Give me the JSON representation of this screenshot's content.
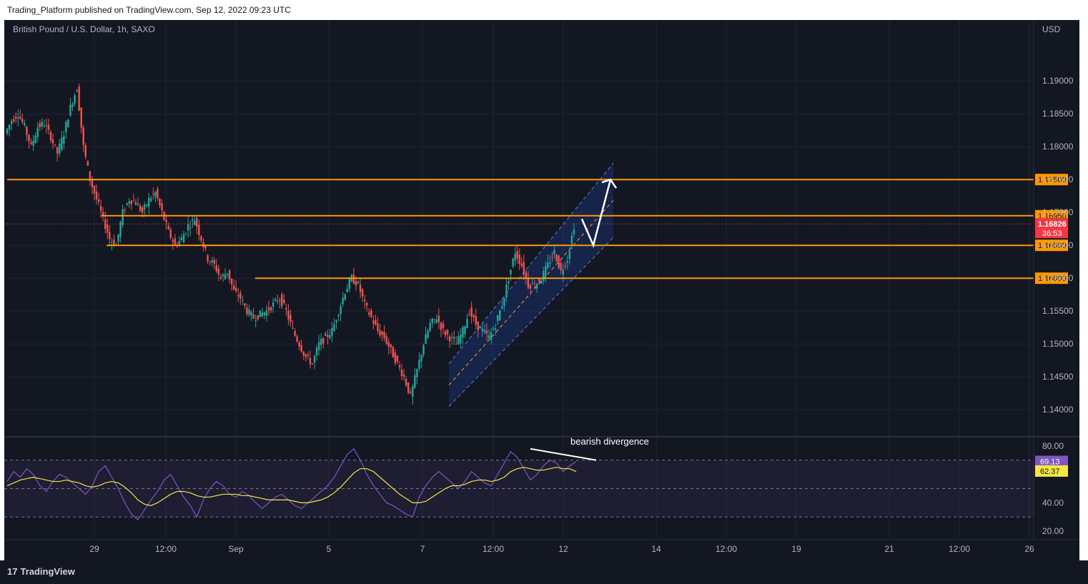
{
  "header": {
    "published": "Trading_Platform published on TradingView.com, Sep 12, 2022 09:23 UTC"
  },
  "footer": {
    "brand": "TradingView",
    "brand_mark": "17"
  },
  "chart_data": {
    "type": "candlestick",
    "symbol_title": "British Pound / U.S. Dollar, 1h, SAXO",
    "currency": "USD",
    "price_ticks": [
      1.19,
      1.185,
      1.18,
      1.175,
      1.17,
      1.165,
      1.16,
      1.155,
      1.15,
      1.145,
      1.14
    ],
    "price_tick_labels": [
      "1.19000",
      "1.18500",
      "1.18000",
      "1.17500",
      "1.17000",
      "1.16500",
      "1.16000",
      "1.15500",
      "1.15000",
      "1.14500",
      "1.14000"
    ],
    "ylim": [
      1.136,
      1.196
    ],
    "x_labels": [
      "29",
      "12:00",
      "Sep",
      "5",
      "7",
      "12:00",
      "12",
      "14",
      "12:00",
      "19",
      "21",
      "12:00",
      "26"
    ],
    "levels": [
      {
        "price": 1.175,
        "label": "1.17500"
      },
      {
        "price": 1.1695,
        "label": "1.16950"
      },
      {
        "price": 1.165,
        "label": "1.16500"
      },
      {
        "price": 1.16,
        "label": "1.16000"
      }
    ],
    "last_price": {
      "price": 1.16826,
      "label": "1.16826",
      "countdown": "36:53"
    },
    "close_path": [
      1.182,
      1.184,
      1.185,
      1.183,
      1.18,
      1.183,
      1.1835,
      1.1815,
      1.179,
      1.182,
      1.186,
      1.189,
      1.18,
      1.175,
      1.172,
      1.169,
      1.166,
      1.165,
      1.17,
      1.172,
      1.1715,
      1.17,
      1.172,
      1.173,
      1.17,
      1.167,
      1.165,
      1.166,
      1.168,
      1.169,
      1.166,
      1.163,
      1.162,
      1.16,
      1.161,
      1.158,
      1.157,
      1.155,
      1.154,
      1.1545,
      1.155,
      1.156,
      1.157,
      1.155,
      1.152,
      1.15,
      1.148,
      1.147,
      1.15,
      1.151,
      1.152,
      1.155,
      1.158,
      1.16,
      1.159,
      1.156,
      1.154,
      1.152,
      1.151,
      1.149,
      1.147,
      1.145,
      1.142,
      1.146,
      1.15,
      1.153,
      1.154,
      1.152,
      1.151,
      1.15,
      1.152,
      1.155,
      1.153,
      1.152,
      1.151,
      1.153,
      1.156,
      1.16,
      1.164,
      1.162,
      1.159,
      1.159,
      1.16,
      1.162,
      1.164,
      1.161,
      1.163,
      1.168
    ],
    "channel": {
      "lower_start": [
        1.1405,
        "Sep 7"
      ],
      "lower_end": [
        1.1662,
        "Sep 12"
      ],
      "upper_start": [
        1.147,
        "Sep 7"
      ],
      "upper_end": [
        1.1775,
        "Sep 12"
      ]
    },
    "projection": [
      1.169,
      1.165,
      1.175
    ],
    "rsi": {
      "ticks": [
        80,
        40,
        20
      ],
      "tick_labels": [
        "80.00",
        "40.00",
        "20.00"
      ],
      "ylim": [
        15,
        85
      ],
      "bands": [
        70,
        50,
        30
      ],
      "value": {
        "v": 69.13,
        "label": "69.13"
      },
      "ma": {
        "v": 62.37,
        "label": "62.37"
      },
      "values": [
        55,
        62,
        58,
        64,
        60,
        52,
        48,
        55,
        60,
        58,
        54,
        50,
        46,
        52,
        62,
        66,
        58,
        50,
        40,
        32,
        28,
        35,
        42,
        48,
        56,
        60,
        52,
        44,
        38,
        30,
        42,
        50,
        55,
        52,
        46,
        44,
        48,
        45,
        40,
        36,
        40,
        44,
        46,
        42,
        38,
        36,
        40,
        44,
        48,
        52,
        58,
        66,
        74,
        78,
        70,
        60,
        52,
        46,
        40,
        38,
        35,
        32,
        30,
        44,
        52,
        58,
        62,
        58,
        54,
        50,
        55,
        62,
        58,
        54,
        52,
        60,
        68,
        76,
        72,
        64,
        56,
        60,
        66,
        70,
        68,
        62,
        66,
        69
      ],
      "ma_values": [
        52,
        54,
        56,
        57,
        58,
        57,
        56,
        55,
        55,
        56,
        55,
        54,
        52,
        51,
        52,
        54,
        55,
        54,
        51,
        47,
        42,
        39,
        38,
        40,
        43,
        46,
        48,
        48,
        47,
        45,
        44,
        44,
        45,
        46,
        46,
        46,
        45,
        45,
        44,
        43,
        42,
        42,
        42,
        42,
        41,
        40,
        40,
        41,
        42,
        44,
        47,
        51,
        56,
        61,
        64,
        64,
        62,
        58,
        54,
        50,
        46,
        43,
        40,
        40,
        41,
        44,
        47,
        50,
        52,
        52,
        53,
        55,
        56,
        56,
        55,
        56,
        58,
        62,
        64,
        65,
        64,
        63,
        63,
        64,
        65,
        64,
        64,
        62
      ],
      "divergence_label": "bearish divergence"
    }
  }
}
